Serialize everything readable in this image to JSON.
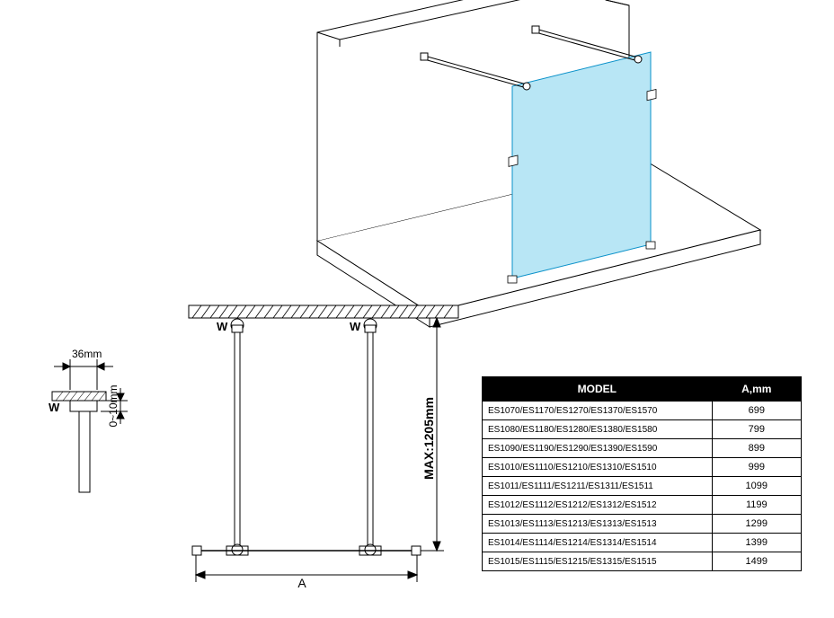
{
  "iso": {
    "glass_color": "#b8e6f5",
    "glass_stroke": "#0a91c9",
    "wall_stroke": "#000000",
    "wall_fill": "#ffffff",
    "bar_stroke": "#000000"
  },
  "elev": {
    "stroke": "#000000",
    "hatch": "#000000",
    "labels": {
      "w": "W",
      "a": "A",
      "max": "MAX:1205mm",
      "t36": "36mm",
      "t010": "0~10mm"
    }
  },
  "table": {
    "headers": [
      "MODEL",
      "A,mm"
    ],
    "rows": [
      [
        "ES1070/ES1170/ES1270/ES1370/ES1570",
        "699"
      ],
      [
        "ES1080/ES1180/ES1280/ES1380/ES1580",
        "799"
      ],
      [
        "ES1090/ES1190/ES1290/ES1390/ES1590",
        "899"
      ],
      [
        "ES1010/ES1110/ES1210/ES1310/ES1510",
        "999"
      ],
      [
        "ES1011/ES1111/ES1211/ES1311/ES1511",
        "1099"
      ],
      [
        "ES1012/ES1112/ES1212/ES1312/ES1512",
        "1199"
      ],
      [
        "ES1013/ES1113/ES1213/ES1313/ES1513",
        "1299"
      ],
      [
        "ES1014/ES1114/ES1214/ES1314/ES1514",
        "1399"
      ],
      [
        "ES1015/ES1115/ES1215/ES1315/ES1515",
        "1499"
      ]
    ]
  }
}
